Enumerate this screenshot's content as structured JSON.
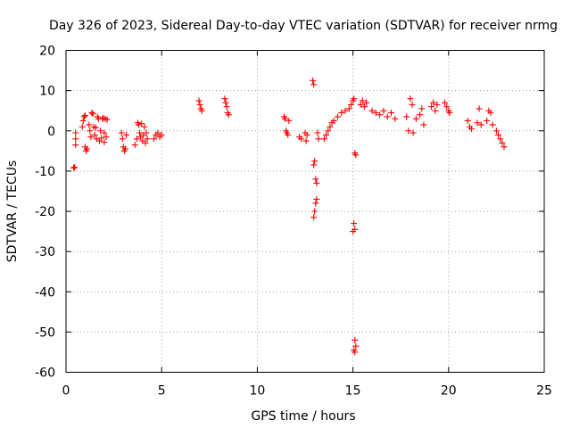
{
  "chart_data": {
    "type": "scatter",
    "title": "Day 326 of 2023, Sidereal Day-to-day VTEC variation (SDTVAR) for receiver nrmg",
    "xlabel": "GPS time / hours",
    "ylabel": "SDTVAR / TECUs",
    "xlim": [
      0,
      25
    ],
    "ylim": [
      -60,
      20
    ],
    "xticks": [
      0,
      5,
      10,
      15,
      20,
      25
    ],
    "yticks": [
      20,
      10,
      0,
      -10,
      -20,
      -30,
      -40,
      -50,
      -60
    ],
    "grid": true,
    "marker": "+",
    "color": "#ff0000",
    "series": [
      {
        "name": "SDTVAR",
        "points": [
          [
            0.4,
            -9.2
          ],
          [
            0.45,
            -9.0
          ],
          [
            0.5,
            -0.5
          ],
          [
            0.5,
            -2.0
          ],
          [
            0.5,
            -3.5
          ],
          [
            0.85,
            1.0
          ],
          [
            0.9,
            2.5
          ],
          [
            0.95,
            3.5
          ],
          [
            1.0,
            3.8
          ],
          [
            1.0,
            -4.0
          ],
          [
            1.05,
            -5.0
          ],
          [
            1.1,
            -4.5
          ],
          [
            1.2,
            1.5
          ],
          [
            1.25,
            0.0
          ],
          [
            1.3,
            -1.5
          ],
          [
            1.35,
            4.5
          ],
          [
            1.4,
            4.2
          ],
          [
            1.45,
            1.0
          ],
          [
            1.5,
            -1.0
          ],
          [
            1.55,
            0.8
          ],
          [
            1.6,
            -2.0
          ],
          [
            1.65,
            3.5
          ],
          [
            1.7,
            3.0
          ],
          [
            1.75,
            -2.5
          ],
          [
            1.8,
            0.0
          ],
          [
            1.85,
            -1.8
          ],
          [
            1.9,
            3.0
          ],
          [
            1.95,
            3.2
          ],
          [
            2.0,
            -0.5
          ],
          [
            2.0,
            -2.8
          ],
          [
            2.05,
            3.0
          ],
          [
            2.1,
            -1.5
          ],
          [
            2.15,
            2.8
          ],
          [
            2.9,
            -0.5
          ],
          [
            2.95,
            -2.0
          ],
          [
            3.0,
            -4.0
          ],
          [
            3.05,
            -5.0
          ],
          [
            3.1,
            -4.5
          ],
          [
            3.15,
            -1.0
          ],
          [
            3.6,
            -3.5
          ],
          [
            3.7,
            -2.0
          ],
          [
            3.75,
            2.0
          ],
          [
            3.8,
            1.5
          ],
          [
            3.85,
            -0.5
          ],
          [
            3.9,
            -1.5
          ],
          [
            3.95,
            1.8
          ],
          [
            4.0,
            -2.5
          ],
          [
            4.05,
            -1.0
          ],
          [
            4.1,
            1.0
          ],
          [
            4.15,
            -3.0
          ],
          [
            4.2,
            -0.5
          ],
          [
            4.25,
            -2.0
          ],
          [
            4.6,
            -2.0
          ],
          [
            4.7,
            -1.0
          ],
          [
            4.8,
            -0.5
          ],
          [
            4.9,
            -1.5
          ],
          [
            5.0,
            -1.0
          ],
          [
            6.95,
            7.5
          ],
          [
            7.0,
            6.5
          ],
          [
            7.05,
            5.5
          ],
          [
            7.1,
            5.0
          ],
          [
            8.3,
            8.0
          ],
          [
            8.35,
            7.0
          ],
          [
            8.4,
            6.0
          ],
          [
            8.45,
            4.5
          ],
          [
            8.5,
            4.0
          ],
          [
            11.4,
            3.5
          ],
          [
            11.45,
            3.0
          ],
          [
            11.5,
            0.0
          ],
          [
            11.55,
            -0.5
          ],
          [
            11.6,
            -1.0
          ],
          [
            11.65,
            2.5
          ],
          [
            12.2,
            -1.5
          ],
          [
            12.3,
            -2.0
          ],
          [
            12.5,
            -0.5
          ],
          [
            12.55,
            -2.5
          ],
          [
            12.6,
            -1.0
          ],
          [
            12.9,
            12.5
          ],
          [
            12.95,
            11.5
          ],
          [
            12.95,
            -8.5
          ],
          [
            13.0,
            -7.5
          ],
          [
            13.05,
            -12.0
          ],
          [
            13.1,
            -13.0
          ],
          [
            13.05,
            -18.0
          ],
          [
            13.0,
            -20.0
          ],
          [
            12.95,
            -21.5
          ],
          [
            13.1,
            -17.0
          ],
          [
            13.15,
            -0.5
          ],
          [
            13.2,
            -2.0
          ],
          [
            13.5,
            -2.0
          ],
          [
            13.6,
            -1.0
          ],
          [
            13.7,
            0.0
          ],
          [
            13.8,
            1.0
          ],
          [
            13.9,
            2.0
          ],
          [
            14.0,
            2.5
          ],
          [
            14.2,
            3.5
          ],
          [
            14.4,
            4.5
          ],
          [
            14.6,
            5.0
          ],
          [
            14.8,
            5.5
          ],
          [
            14.9,
            6.5
          ],
          [
            15.0,
            7.5
          ],
          [
            15.05,
            8.0
          ],
          [
            15.1,
            -5.5
          ],
          [
            15.15,
            -6.0
          ],
          [
            15.05,
            -23.0
          ],
          [
            15.1,
            -24.5
          ],
          [
            15.0,
            -25.0
          ],
          [
            15.1,
            -52.0
          ],
          [
            15.15,
            -53.5
          ],
          [
            15.05,
            -54.5
          ],
          [
            15.1,
            -55.0
          ],
          [
            15.4,
            6.5
          ],
          [
            15.5,
            7.5
          ],
          [
            15.6,
            6.0
          ],
          [
            15.7,
            7.0
          ],
          [
            16.0,
            5.0
          ],
          [
            16.2,
            4.5
          ],
          [
            16.4,
            4.0
          ],
          [
            16.6,
            5.0
          ],
          [
            16.8,
            3.5
          ],
          [
            17.0,
            4.5
          ],
          [
            17.2,
            3.0
          ],
          [
            17.8,
            3.5
          ],
          [
            17.9,
            0.0
          ],
          [
            18.0,
            8.0
          ],
          [
            18.1,
            6.5
          ],
          [
            18.15,
            -0.5
          ],
          [
            18.3,
            3.0
          ],
          [
            18.5,
            4.0
          ],
          [
            18.6,
            5.5
          ],
          [
            18.7,
            1.5
          ],
          [
            19.1,
            6.0
          ],
          [
            19.2,
            7.0
          ],
          [
            19.3,
            5.0
          ],
          [
            19.4,
            6.5
          ],
          [
            19.8,
            7.0
          ],
          [
            19.9,
            6.0
          ],
          [
            20.0,
            5.0
          ],
          [
            20.05,
            4.5
          ],
          [
            21.0,
            2.5
          ],
          [
            21.1,
            1.0
          ],
          [
            21.2,
            0.5
          ],
          [
            21.5,
            2.0
          ],
          [
            21.6,
            5.5
          ],
          [
            21.7,
            1.5
          ],
          [
            22.0,
            2.5
          ],
          [
            22.1,
            5.0
          ],
          [
            22.2,
            4.5
          ],
          [
            22.3,
            1.5
          ],
          [
            22.5,
            0.0
          ],
          [
            22.6,
            -1.0
          ],
          [
            22.7,
            -2.0
          ],
          [
            22.8,
            -3.0
          ],
          [
            22.9,
            -4.0
          ]
        ]
      }
    ]
  }
}
